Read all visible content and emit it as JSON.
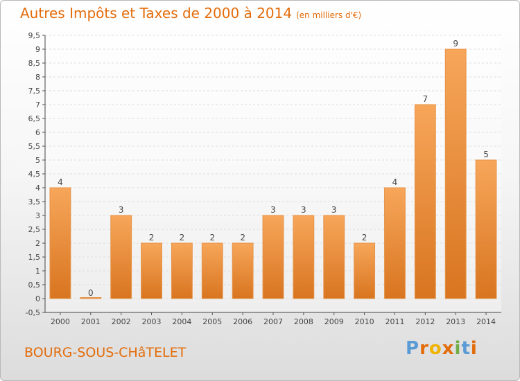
{
  "header": {
    "title": "Autres Impôts et Taxes de 2000 à 2014",
    "unit": "(en milliers d'€)"
  },
  "footer": {
    "place": "BOURG-SOUS-CHâTELET",
    "brand": "Proxiti"
  },
  "colors": {
    "accent": "#e36c0a",
    "bar_light": "#f7a65a",
    "bar_dark": "#d87520",
    "brand_letters": [
      "#5b9bd5",
      "#e36c0a",
      "#f0b400",
      "#e36c0a",
      "#70ad47",
      "#5b9bd5",
      "#e36c0a"
    ]
  },
  "chart_data": {
    "type": "bar",
    "categories": [
      "2000",
      "2001",
      "2002",
      "2003",
      "2004",
      "2005",
      "2006",
      "2007",
      "2008",
      "2009",
      "2010",
      "2011",
      "2012",
      "2013",
      "2014"
    ],
    "values": [
      4,
      0,
      3,
      2,
      2,
      2,
      2,
      3,
      3,
      3,
      2,
      4,
      7,
      9,
      5
    ],
    "data_labels": [
      "4",
      "0",
      "3",
      "2",
      "2",
      "2",
      "2",
      "3",
      "3",
      "3",
      "2",
      "4",
      "7",
      "9",
      "5"
    ],
    "ylim": [
      -0.5,
      9.5
    ],
    "yticks": [
      "-0,5",
      "0",
      "0,5",
      "1",
      "1,5",
      "2",
      "2,5",
      "3",
      "3,5",
      "4",
      "4,5",
      "5",
      "5,5",
      "6",
      "6,5",
      "7",
      "7,5",
      "8",
      "8,5",
      "9",
      "9,5"
    ],
    "ytick_values": [
      -0.5,
      0,
      0.5,
      1,
      1.5,
      2,
      2.5,
      3,
      3.5,
      4,
      4.5,
      5,
      5.5,
      6,
      6.5,
      7,
      7.5,
      8,
      8.5,
      9,
      9.5
    ],
    "grid": true,
    "xlabel": "",
    "ylabel": ""
  }
}
